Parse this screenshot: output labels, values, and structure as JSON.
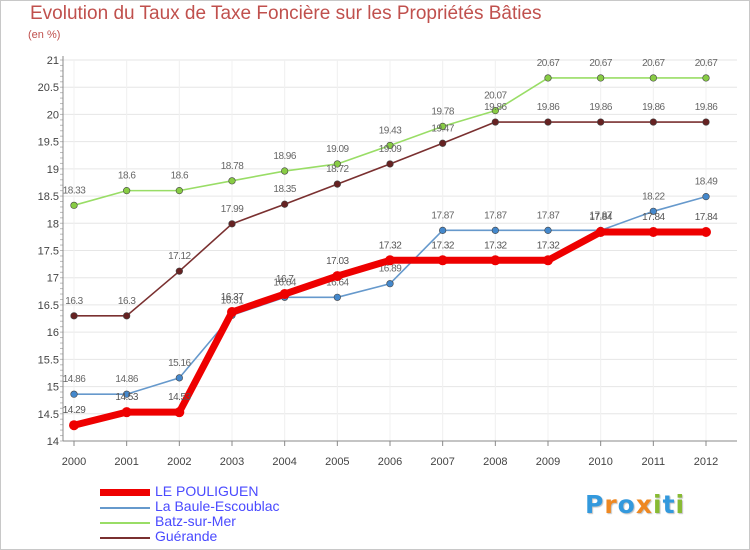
{
  "chart_data": {
    "type": "line",
    "title": "Evolution du Taux de Taxe Foncière sur les Propriétés Bâties",
    "subtitle": "(en %)",
    "x": [
      "2000",
      "2001",
      "2002",
      "2003",
      "2004",
      "2005",
      "2006",
      "2007",
      "2008",
      "2009",
      "2010",
      "2011",
      "2012"
    ],
    "ylim": [
      14,
      21
    ],
    "yticks": [
      "14",
      "14.5",
      "15",
      "15.5",
      "16",
      "16.5",
      "17",
      "17.5",
      "18",
      "18.5",
      "19",
      "19.5",
      "20",
      "20.5",
      "21"
    ],
    "series": [
      {
        "name": "Batz-sur-Mer",
        "color": "#99dd66",
        "marker_color": "#88cc44",
        "values": [
          18.33,
          18.6,
          18.6,
          18.78,
          18.96,
          19.09,
          19.43,
          19.78,
          20.07,
          20.67,
          20.67,
          20.67,
          20.67
        ],
        "labels": [
          "18.33",
          "18.6",
          "18.6",
          "18.78",
          "18.96",
          "19.09",
          "19.43",
          "19.78",
          "20.07",
          "20.67",
          "20.67",
          "20.67",
          "20.67"
        ]
      },
      {
        "name": "Guérande",
        "color": "#7a3030",
        "marker_color": "#662222",
        "values": [
          16.3,
          16.3,
          17.12,
          17.99,
          18.35,
          18.72,
          19.09,
          19.47,
          19.86,
          19.86,
          19.86,
          19.86,
          19.86
        ],
        "labels": [
          "16.3",
          "16.3",
          "17.12",
          "17.99",
          "18.35",
          "18.72",
          "19.09",
          "19.47",
          "19.86",
          "19.86",
          "19.86",
          "19.86",
          "19.86"
        ]
      },
      {
        "name": "La Baule-Escoublac",
        "color": "#6699cc",
        "marker_color": "#4488cc",
        "values": [
          14.86,
          14.86,
          15.16,
          16.31,
          16.64,
          16.64,
          16.89,
          17.87,
          17.87,
          17.87,
          17.87,
          18.22,
          18.49
        ],
        "labels": [
          "14.86",
          "14.86",
          "15.16",
          "16.31",
          "16.64",
          "16.64",
          "16.89",
          "17.87",
          "17.87",
          "17.87",
          "17.87",
          "18.22",
          "18.49"
        ]
      },
      {
        "name": "LE POULIGUEN",
        "color": "#ee0000",
        "marker_color": "#ee0000",
        "values": [
          14.29,
          14.53,
          14.53,
          16.37,
          16.7,
          17.03,
          17.32,
          17.32,
          17.32,
          17.32,
          17.84,
          17.84,
          17.84
        ],
        "labels": [
          "14.29",
          "14.53",
          "14.53",
          "16.37",
          "16.7",
          "17.03",
          "17.32",
          "17.32",
          "17.32",
          "17.32",
          "17.84",
          "17.84",
          "17.84"
        ]
      }
    ],
    "legend": [
      {
        "name": "LE POULIGUEN",
        "color": "#ee0000",
        "width": 7
      },
      {
        "name": "La Baule-Escoublac",
        "color": "#6699cc",
        "width": 2
      },
      {
        "name": "Batz-sur-Mer",
        "color": "#99dd66",
        "width": 2
      },
      {
        "name": "Guérande",
        "color": "#7a3030",
        "width": 2
      }
    ]
  },
  "logo": {
    "letters": [
      "P",
      "r",
      "o",
      "x",
      "i",
      "t",
      "i"
    ],
    "colors": [
      "#3399dd",
      "#ee8822",
      "#3399dd",
      "#ee8822",
      "#88bb33",
      "#3399dd",
      "#88bb33"
    ]
  }
}
